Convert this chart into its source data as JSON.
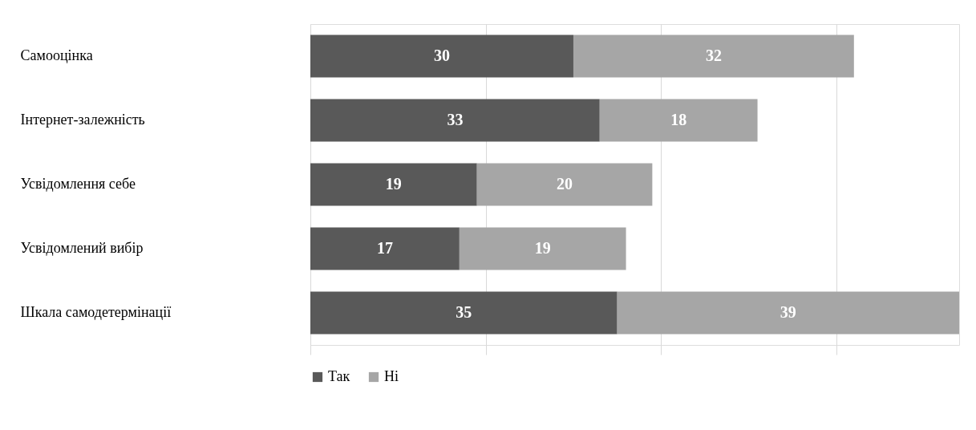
{
  "chart_data": {
    "type": "bar",
    "orientation": "horizontal",
    "stacked": true,
    "categories": [
      "Самооцінка",
      "Інтернет-залежність",
      "Усвідомлення себе",
      "Усвідомлений вибір",
      "Шкала самодетермінації"
    ],
    "series": [
      {
        "name": "Так",
        "color": "#595959",
        "values": [
          30,
          33,
          19,
          17,
          35
        ]
      },
      {
        "name": "Ні",
        "color": "#a6a6a6",
        "values": [
          32,
          18,
          20,
          19,
          39
        ]
      }
    ],
    "data_labels": true,
    "grid": "x",
    "legend": "bottom"
  }
}
